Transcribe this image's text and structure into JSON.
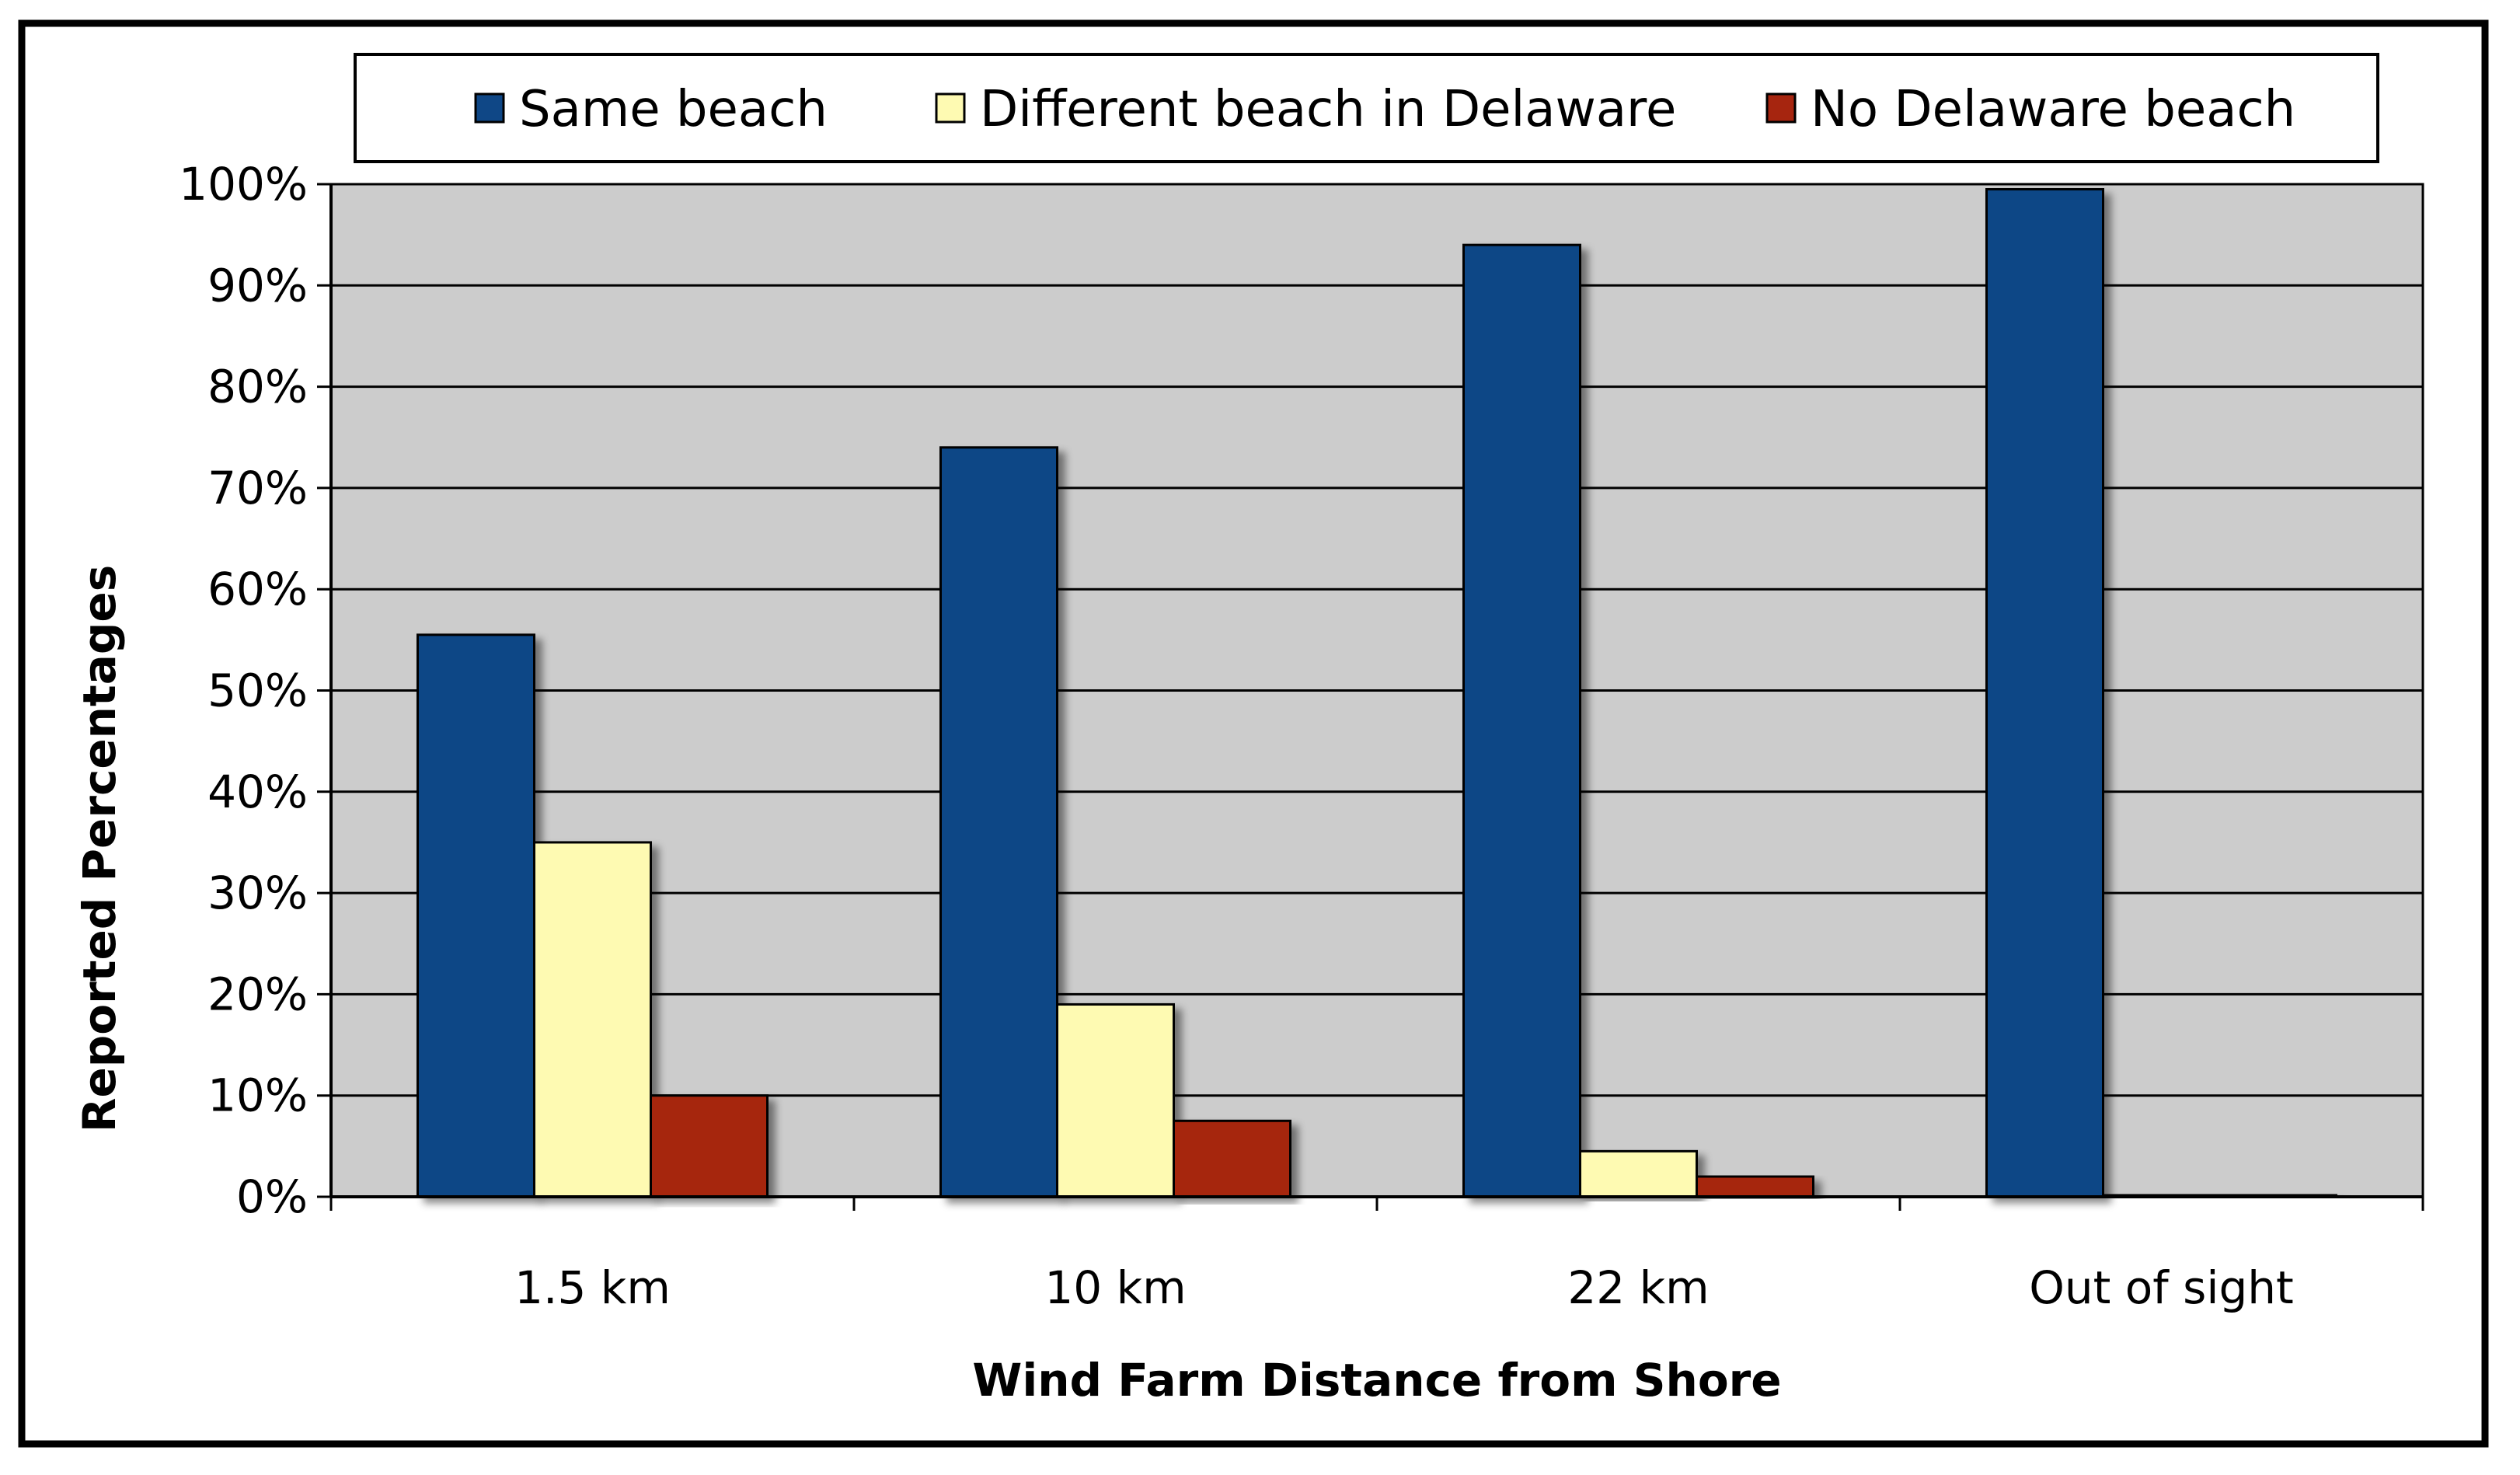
{
  "chart_data": {
    "type": "bar",
    "categories": [
      "1.5 km",
      "10 km",
      "22 km",
      "Out of sight"
    ],
    "series": [
      {
        "name": "Same beach",
        "color": "#0f4786",
        "values": [
          55.5,
          74,
          94,
          99.5
        ]
      },
      {
        "name": "Different beach in Delaware",
        "color": "#fefab2",
        "values": [
          35,
          19,
          4.5,
          0.2
        ]
      },
      {
        "name": "No Delaware beach",
        "color": "#a6250f",
        "values": [
          10,
          7.5,
          2,
          0.2
        ]
      }
    ],
    "xlabel": "Wind Farm Distance from Shore",
    "ylabel": "Reported Percentages",
    "ylim": [
      0,
      100
    ],
    "yticks": [
      "0%",
      "10%",
      "20%",
      "30%",
      "40%",
      "50%",
      "60%",
      "70%",
      "80%",
      "90%",
      "100%"
    ],
    "grid": true,
    "legend_position": "top",
    "plot_background": "#cccccc"
  }
}
